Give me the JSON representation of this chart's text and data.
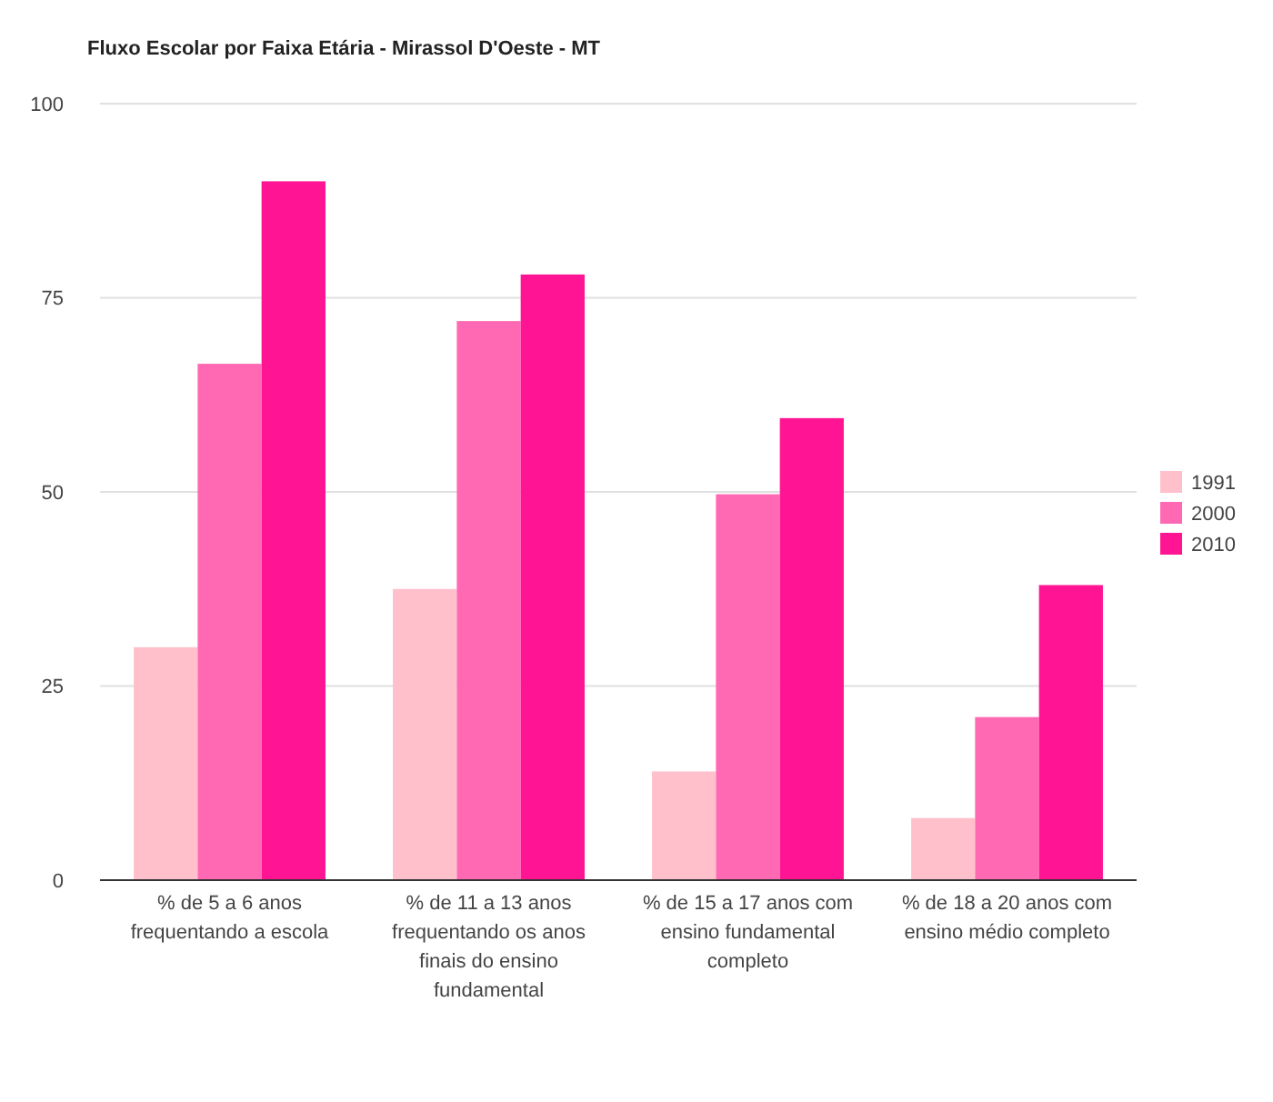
{
  "chart_data": {
    "type": "bar",
    "title": "Fluxo Escolar por Faixa Etária - Mirassol D'Oeste - MT",
    "categories": [
      "% de 5 a 6 anos frequentando a escola",
      "% de 11 a 13 anos frequentando os anos finais do ensino fundamental",
      "% de 15 a 17 anos com ensino fundamental completo",
      "% de 18 a 20 anos com ensino médio completo"
    ],
    "series": [
      {
        "name": "1991",
        "color": "#ffc0cb",
        "values": [
          30,
          37.5,
          14,
          8
        ]
      },
      {
        "name": "2000",
        "color": "#ff69b4",
        "values": [
          66.5,
          72,
          49.7,
          21
        ]
      },
      {
        "name": "2010",
        "color": "#ff1493",
        "values": [
          90,
          78,
          59.5,
          38
        ]
      }
    ],
    "ylim": [
      0,
      100
    ],
    "yticks": [
      0,
      25,
      50,
      75,
      100
    ],
    "grid": "y",
    "legend": "right"
  }
}
